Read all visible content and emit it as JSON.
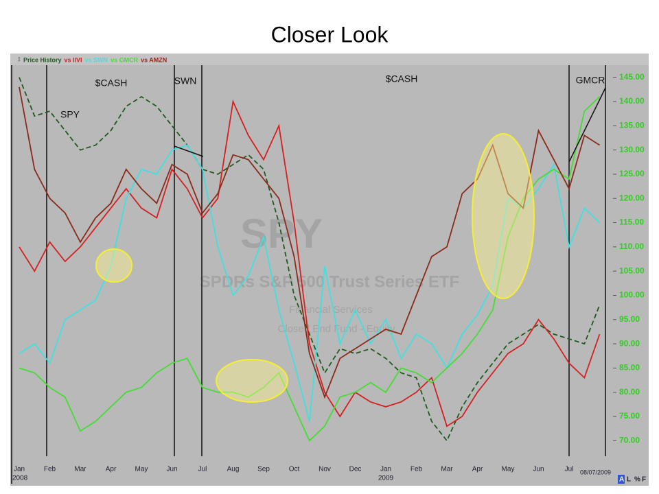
{
  "slide_title": "Closer Look",
  "chart_data": {
    "type": "line",
    "categories": [
      "Jan",
      null,
      "Feb",
      null,
      "Mar",
      null,
      "Apr",
      null,
      "May",
      null,
      "Jun",
      null,
      "Jul",
      null,
      "Aug",
      null,
      "Sep",
      null,
      "Oct",
      null,
      "Nov",
      null,
      "Dec",
      null,
      "Jan",
      null,
      "Feb",
      null,
      "Mar",
      null,
      "Apr",
      null,
      "May",
      null,
      "Jun",
      null,
      "Jul",
      null,
      null
    ],
    "year_labels": [
      {
        "index": 0,
        "label": "2008"
      },
      {
        "index": 24,
        "label": "2009"
      }
    ],
    "date_label": "08/07/2009",
    "controls": [
      "A",
      "L",
      "%",
      "F"
    ],
    "annotations": [
      "SPY",
      "$CASH",
      "SWN",
      "$CASH",
      "GMCR"
    ],
    "watermark": [
      "SPY",
      "SPDRs S&P 500 Trust Series ETF",
      "Financial Services",
      "Closed End Fund - Equity"
    ],
    "series": [
      {
        "name": "Price History",
        "color": "#1f5a1f",
        "dashed": true,
        "values": [
          145,
          137,
          138,
          134,
          130,
          131,
          134,
          139,
          141,
          139,
          135,
          131,
          126,
          125,
          127,
          129,
          126,
          115,
          100,
          92,
          84,
          89,
          88,
          89,
          87,
          84,
          83,
          74,
          70,
          77,
          82,
          86,
          90,
          92,
          94,
          92,
          91,
          90,
          98
        ]
      },
      {
        "name": "vs IIVI",
        "color": "#d42020",
        "values": [
          110,
          105,
          111,
          107,
          110,
          114,
          118,
          122,
          118,
          116,
          126,
          122,
          116,
          120,
          140,
          133,
          128,
          135,
          115,
          90,
          80,
          75,
          80,
          78,
          77,
          78,
          80,
          83,
          73,
          75,
          80,
          84,
          88,
          90,
          95,
          91,
          86,
          83,
          92
        ]
      },
      {
        "name": "vs SWN",
        "color": "#40e0e0",
        "values": [
          88,
          90,
          86,
          95,
          97,
          99,
          106,
          120,
          126,
          125,
          130,
          131,
          126,
          110,
          100,
          104,
          112,
          97,
          86,
          74,
          106,
          90,
          97,
          90,
          95,
          87,
          92,
          90,
          85,
          92,
          96,
          102,
          120,
          118,
          122,
          127,
          110,
          118,
          115
        ]
      },
      {
        "name": "vs GMCR",
        "color": "#44dd33",
        "values": [
          85,
          84,
          81,
          79,
          72,
          74,
          77,
          80,
          81,
          84,
          86,
          87,
          81,
          80,
          80,
          79,
          81,
          84,
          77,
          70,
          73,
          79,
          80,
          82,
          80,
          85,
          84,
          82,
          85,
          88,
          92,
          97,
          112,
          120,
          124,
          126,
          124,
          138,
          141
        ]
      },
      {
        "name": "vs AMZN",
        "color": "#8b2a1a",
        "values": [
          143,
          126,
          120,
          117,
          111,
          116,
          119,
          126,
          122,
          119,
          127,
          125,
          117,
          121,
          129,
          128,
          124,
          120,
          108,
          88,
          79,
          87,
          89,
          91,
          93,
          92,
          100,
          108,
          110,
          121,
          124,
          131,
          121,
          118,
          134,
          128,
          122,
          133,
          131
        ]
      }
    ],
    "ylim": [
      67.5,
      147.5
    ],
    "yticks": [
      {
        "value": 70,
        "label": "70.00"
      },
      {
        "value": 75,
        "label": "75.00"
      },
      {
        "value": 80,
        "label": "80.00"
      },
      {
        "value": 85,
        "label": "85.00"
      },
      {
        "value": 90,
        "label": "90.00"
      },
      {
        "value": 95,
        "label": "95.00"
      },
      {
        "value": 100,
        "label": "100.00"
      },
      {
        "value": 105,
        "label": "105.00"
      },
      {
        "value": 110,
        "label": "110.00"
      },
      {
        "value": 115,
        "label": "115.00"
      },
      {
        "value": 120,
        "label": "120.00"
      },
      {
        "value": 125,
        "label": "125.00"
      },
      {
        "value": 130,
        "label": "130.00"
      },
      {
        "value": 135,
        "label": "135.00"
      },
      {
        "value": 140,
        "label": "140.00"
      },
      {
        "value": 145,
        "label": "145.00"
      }
    ],
    "ytick_color": "#33cc22",
    "grid": false
  }
}
